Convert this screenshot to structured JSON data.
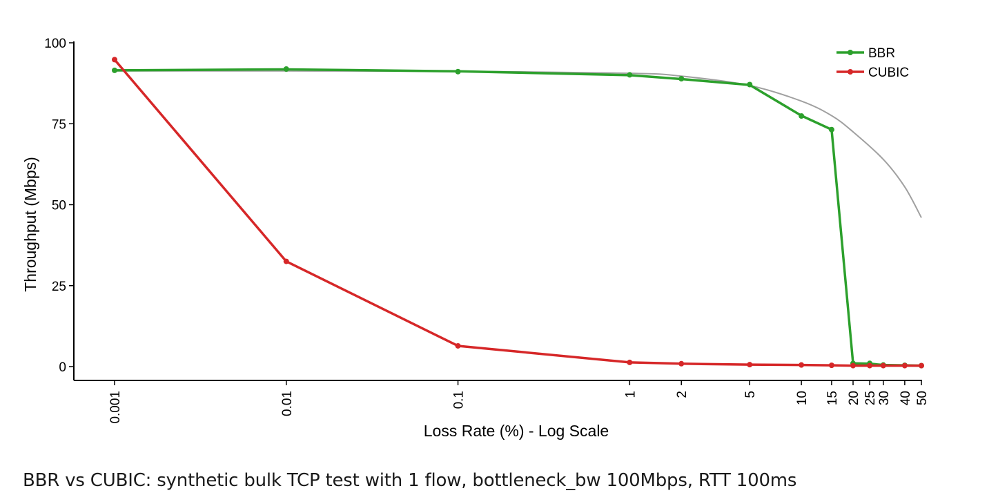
{
  "caption": "BBR vs CUBIC: synthetic bulk TCP test with 1 flow, bottleneck_bw 100Mbps, RTT 100ms",
  "colors": {
    "bbr": "#2ca02c",
    "cubic": "#d62728",
    "model": "#a0a0a0",
    "axis": "#000000"
  },
  "chart_data": {
    "type": "line",
    "title": "",
    "xlabel": "Loss Rate (%) - Log Scale",
    "ylabel": "Throughput (Mbps)",
    "xscale": "log",
    "xlim": [
      0.001,
      50
    ],
    "ylim": [
      0,
      100
    ],
    "x_ticks": [
      0.001,
      0.01,
      0.1,
      1,
      2,
      5,
      10,
      15,
      20,
      25,
      30,
      40,
      50
    ],
    "x_tick_labels": [
      "0.001",
      "0.01",
      "0.1",
      "1",
      "2",
      "5",
      "10",
      "15",
      "20",
      "25",
      "30",
      "40",
      "50"
    ],
    "y_ticks": [
      0,
      25,
      50,
      75,
      100
    ],
    "y_tick_labels": [
      "0",
      "25",
      "50",
      "75",
      "100"
    ],
    "legend_position": "top-right",
    "series": [
      {
        "name": "BBR",
        "color_key": "bbr",
        "x": [
          0.001,
          0.01,
          0.1,
          1,
          2,
          5,
          10,
          15,
          20,
          25,
          30,
          40,
          50
        ],
        "y": [
          91.5,
          91.8,
          91.2,
          90.0,
          88.8,
          87.0,
          77.5,
          73.2,
          1.0,
          0.9,
          0.5,
          0.4,
          0.3
        ],
        "markers_y": [
          91.5,
          91.9,
          91.1,
          90.1,
          88.9,
          87.1,
          77.4,
          73.2,
          1.0,
          1.0,
          0.5,
          0.4,
          0.3
        ]
      },
      {
        "name": "CUBIC",
        "color_key": "cubic",
        "x": [
          0.001,
          0.01,
          0.1,
          1,
          2,
          5,
          10,
          15,
          20,
          25,
          30,
          40,
          50
        ],
        "y": [
          94.8,
          32.5,
          6.4,
          1.3,
          0.9,
          0.6,
          0.5,
          0.4,
          0.3,
          0.3,
          0.3,
          0.3,
          0.3
        ]
      }
    ],
    "reference_curve": {
      "color_key": "model",
      "x": [
        0.001,
        0.01,
        0.1,
        1,
        2,
        5,
        10,
        15,
        20,
        30,
        40,
        50
      ],
      "y": [
        91.3,
        91.3,
        91.2,
        90.6,
        89.7,
        86.8,
        82.0,
        77.5,
        72.5,
        64.0,
        55.5,
        46.0
      ]
    }
  }
}
